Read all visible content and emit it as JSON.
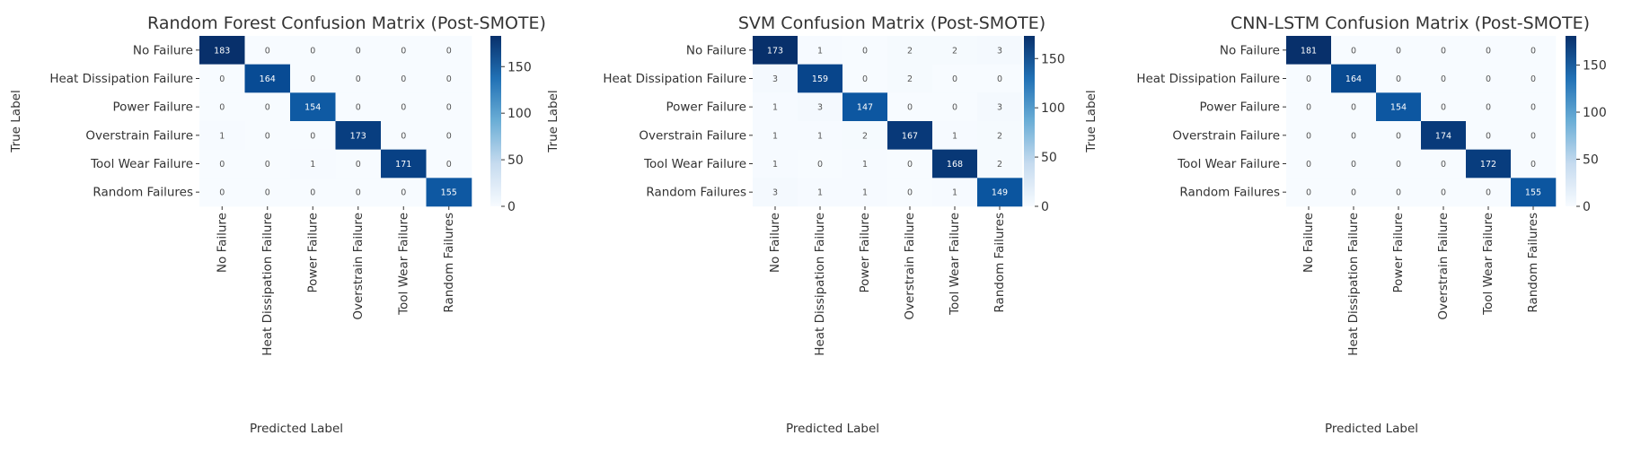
{
  "chart_data": [
    {
      "type": "heatmap",
      "title": "Random Forest Confusion Matrix (Post-SMOTE)",
      "xlabel": "Predicted Label",
      "ylabel": "True Label",
      "categories": [
        "No Failure",
        "Heat Dissipation Failure",
        "Power Failure",
        "Overstrain Failure",
        "Tool Wear Failure",
        "Random Failures"
      ],
      "matrix": [
        [
          183,
          0,
          0,
          0,
          0,
          0
        ],
        [
          0,
          164,
          0,
          0,
          0,
          0
        ],
        [
          0,
          0,
          154,
          0,
          0,
          0
        ],
        [
          1,
          0,
          0,
          173,
          0,
          0
        ],
        [
          0,
          0,
          1,
          0,
          171,
          0
        ],
        [
          0,
          0,
          0,
          0,
          0,
          155
        ]
      ],
      "colorbar": {
        "range": [
          0,
          183
        ],
        "ticks": [
          0,
          50,
          100,
          150
        ],
        "colormap": "Blues"
      },
      "grid": false
    },
    {
      "type": "heatmap",
      "title": "SVM Confusion Matrix (Post-SMOTE)",
      "xlabel": "Predicted Label",
      "ylabel": "True Label",
      "categories": [
        "No Failure",
        "Heat Dissipation Failure",
        "Power Failure",
        "Overstrain Failure",
        "Tool Wear Failure",
        "Random Failures"
      ],
      "matrix": [
        [
          173,
          1,
          0,
          2,
          2,
          3
        ],
        [
          3,
          159,
          0,
          2,
          0,
          0
        ],
        [
          1,
          3,
          147,
          0,
          0,
          3
        ],
        [
          1,
          1,
          2,
          167,
          1,
          2
        ],
        [
          1,
          0,
          1,
          0,
          168,
          2
        ],
        [
          3,
          1,
          1,
          0,
          1,
          149
        ]
      ],
      "colorbar": {
        "range": [
          0,
          173
        ],
        "ticks": [
          0,
          50,
          100,
          150
        ],
        "colormap": "Blues"
      },
      "grid": false
    },
    {
      "type": "heatmap",
      "title": "CNN-LSTM Confusion Matrix (Post-SMOTE)",
      "xlabel": "Predicted Label",
      "ylabel": "True Label",
      "categories": [
        "No Failure",
        "Heat Dissipation Failure",
        "Power Failure",
        "Overstrain Failure",
        "Tool Wear Failure",
        "Random Failures"
      ],
      "matrix": [
        [
          181,
          0,
          0,
          0,
          0,
          0
        ],
        [
          0,
          164,
          0,
          0,
          0,
          0
        ],
        [
          0,
          0,
          154,
          0,
          0,
          0
        ],
        [
          0,
          0,
          0,
          174,
          0,
          0
        ],
        [
          0,
          0,
          0,
          0,
          172,
          0
        ],
        [
          0,
          0,
          0,
          0,
          0,
          155
        ]
      ],
      "colorbar": {
        "range": [
          0,
          181
        ],
        "ticks": [
          0,
          50,
          100,
          150
        ],
        "colormap": "Blues"
      },
      "grid": false
    }
  ]
}
